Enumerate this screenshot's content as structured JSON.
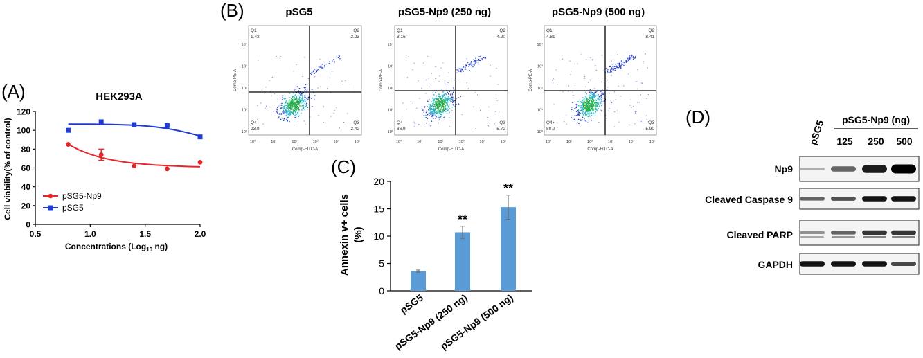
{
  "panels": {
    "A": {
      "letter": "(A)"
    },
    "B": {
      "letter": "(B)"
    },
    "C": {
      "letter": "(C)"
    },
    "D": {
      "letter": "(D)"
    }
  },
  "chart_data": [
    {
      "type": "scatter",
      "title": "HEK293A",
      "xlabel": "Concentrations (Log10 ng)",
      "xlabel_main": "Concentrations (Log",
      "xlabel_sub": "10",
      "xlabel_tail": " ng)",
      "ylabel": "Cell viability(% of control)",
      "xlim": [
        0.5,
        2.0
      ],
      "ylim": [
        0,
        120
      ],
      "xticks": [
        "0.5",
        "1.0",
        "1.5",
        "2.0"
      ],
      "yticks": [
        "0",
        "20",
        "40",
        "60",
        "80",
        "100",
        "120"
      ],
      "legend_position": "bottom-left",
      "series": [
        {
          "name": "pSG5-Np9",
          "color": "#e8262a",
          "marker": "circle",
          "x": [
            0.8,
            1.1,
            1.4,
            1.7,
            2.0
          ],
          "y": [
            85,
            74,
            62,
            59,
            66
          ],
          "err": [
            0,
            6,
            0,
            0,
            0
          ],
          "fit_x": [
            0.8,
            0.9,
            1.0,
            1.1,
            1.2,
            1.3,
            1.4,
            1.5,
            1.6,
            1.7,
            1.8,
            1.9,
            2.0
          ],
          "fit_y": [
            85,
            79,
            74.5,
            71,
            68.5,
            66.5,
            65,
            64,
            63,
            62.4,
            61.9,
            61.5,
            61.2
          ]
        },
        {
          "name": "pSG5",
          "color": "#1f3bd6",
          "marker": "square",
          "x": [
            0.8,
            1.1,
            1.4,
            1.7,
            2.0
          ],
          "y": [
            100,
            109,
            106,
            105,
            93
          ],
          "err": [
            0,
            0,
            0,
            0,
            0
          ],
          "fit_x": [
            0.8,
            0.9,
            1.0,
            1.1,
            1.2,
            1.3,
            1.4,
            1.5,
            1.6,
            1.7,
            1.8,
            1.9,
            2.0
          ],
          "fit_y": [
            106.6,
            106.6,
            106.5,
            106.4,
            106.2,
            105.9,
            105.4,
            104.6,
            103.5,
            101.9,
            99.7,
            97,
            94
          ]
        }
      ]
    },
    {
      "type": "bar",
      "xlabel": "",
      "ylabel": "Annexin v+ cells (%)",
      "ylabel_line1": "Annexin v+ cells",
      "ylabel_line2": "(%)",
      "ylim": [
        0,
        20
      ],
      "yticks": [
        "0",
        "5",
        "10",
        "15",
        "20"
      ],
      "categories": [
        "pSG5",
        "pSG5-Np9 (250 ng)",
        "pSG5-Np9 (500 ng)"
      ],
      "values": [
        3.6,
        10.7,
        15.3
      ],
      "errors": [
        0.2,
        1.1,
        2.2
      ],
      "annotations": [
        "",
        "**",
        "**"
      ],
      "color": "#5b9bd5"
    }
  ],
  "flow": {
    "panels": [
      {
        "title": "pSG5",
        "q1": "1.43",
        "q2": "2.23",
        "q3": "2.42",
        "q4": "93.9"
      },
      {
        "title": "pSG5-Np9 (250 ng)",
        "q1": "3.16",
        "q2": "4.20",
        "q3": "5.72",
        "q4": "86.9"
      },
      {
        "title": "pSG5-Np9 (500 ng)",
        "q1": "4.81",
        "q2": "8.41",
        "q3": "5.90",
        "q4": "80.9"
      }
    ],
    "quadrant_labels": [
      "Q1",
      "Q2",
      "Q3",
      "Q4"
    ],
    "xaxis_label": "Comp-FITC-A",
    "yaxis_label": "Comp-PE-A",
    "decade_labels": [
      "10⁰",
      "10¹",
      "10²",
      "10³",
      "10⁴",
      "10⁵"
    ]
  },
  "blot": {
    "control_label": "pSG5",
    "group_label": "pSG5-Np9 (ng)",
    "lanes": [
      "125",
      "250",
      "500"
    ],
    "rows": [
      {
        "label": "Np9",
        "intensity": [
          0.05,
          0.45,
          0.85,
          1.0
        ]
      },
      {
        "label": "Cleaved Caspase 9",
        "intensity": [
          0.45,
          0.55,
          0.9,
          0.9
        ]
      },
      {
        "label": "Cleaved PARP",
        "intensity": [
          0.2,
          0.45,
          0.7,
          0.7
        ]
      },
      {
        "label": "GAPDH",
        "intensity": [
          0.9,
          0.9,
          0.9,
          0.6
        ]
      }
    ]
  }
}
